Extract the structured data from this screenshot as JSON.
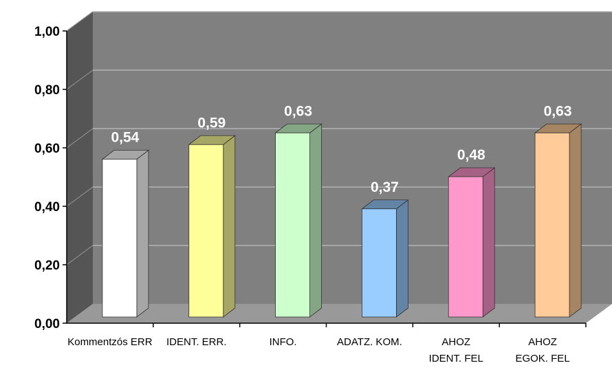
{
  "chart_data": {
    "type": "bar",
    "categories": [
      [
        "Kommentzós ERR"
      ],
      [
        "IDENT",
        "ERR"
      ],
      [
        "INFO"
      ],
      [
        "ADATZ",
        "KOM"
      ],
      [
        "AHOZ",
        "IDENT",
        "FEL"
      ],
      [
        "AHOZ",
        "EGOK",
        "FEL"
      ]
    ],
    "category_labels_raw": [
      "Kommentzós ERR",
      "IDENT. ERR.",
      "INFO.",
      "ADATZ. KOM.",
      "AHOZ IDENT. FEL",
      "AHOZ EGOK. FEL"
    ],
    "values": [
      0.54,
      0.59,
      0.63,
      0.37,
      0.48,
      0.63
    ],
    "value_labels": [
      "0,54",
      "0,59",
      "0,63",
      "0,37",
      "0,48",
      "0,63"
    ],
    "bar_colors": [
      "#ffffff",
      "#ffff99",
      "#ccffcc",
      "#99ccff",
      "#ff99cc",
      "#ffcc99"
    ],
    "bar_side_colors": [
      "#a6a6a6",
      "#a6a665",
      "#85a685",
      "#6285a6",
      "#a66285",
      "#a68562"
    ],
    "ylim": [
      0,
      1
    ],
    "yticks": [
      "0,00",
      "0,20",
      "0,40",
      "0,60",
      "0,80",
      "1,00"
    ],
    "grid": true,
    "style": "3d",
    "wall_color": "#808080",
    "floor_color": "#999999",
    "side_wall_color": "#555555",
    "title": "",
    "xlabel": "",
    "ylabel": ""
  }
}
